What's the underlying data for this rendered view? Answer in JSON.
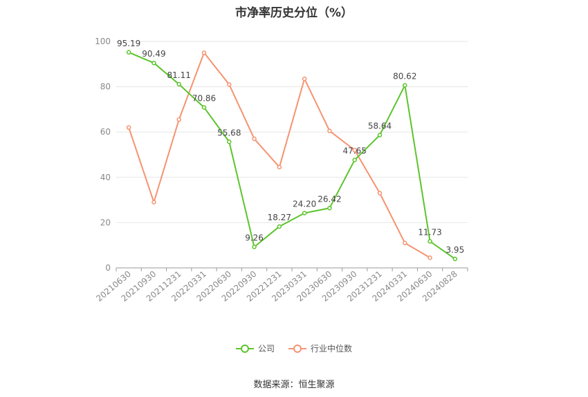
{
  "chart_data": {
    "type": "line",
    "title": "市净率历史分位（%）",
    "categories": [
      "20210630",
      "20210930",
      "20211231",
      "20220331",
      "20220630",
      "20220930",
      "20221231",
      "20230331",
      "20230630",
      "20230930",
      "20231231",
      "20240331",
      "20240630",
      "20240828"
    ],
    "ylim": [
      0,
      100
    ],
    "yticks": [
      0,
      20,
      40,
      60,
      80,
      100
    ],
    "grid": true,
    "legend_position": "bottom",
    "series": [
      {
        "name": "公司",
        "color": "#5cc42b",
        "values": [
          95.19,
          90.49,
          81.11,
          70.86,
          55.68,
          9.26,
          18.27,
          24.2,
          26.42,
          47.65,
          58.64,
          80.62,
          11.73,
          3.95
        ],
        "labels": [
          "95.19",
          "90.49",
          "81.11",
          "70.86",
          "55.68",
          "9.26",
          "18.27",
          "24.20",
          "26.42",
          "47.65",
          "58.64",
          "80.62",
          "11.73",
          "3.95"
        ]
      },
      {
        "name": "行业中位数",
        "color": "#f59370",
        "values": [
          62,
          29,
          65.5,
          95,
          81,
          57,
          44.5,
          83.5,
          60.5,
          52,
          33,
          11,
          4.5,
          null
        ]
      }
    ]
  },
  "source": "数据来源：恒生聚源"
}
